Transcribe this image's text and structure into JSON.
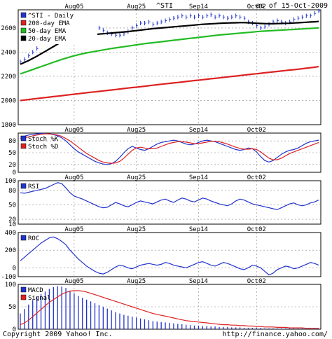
{
  "header": {
    "symbol": "^STI",
    "as_of": "as of 15-Oct-2009"
  },
  "footer": {
    "copyright": "Copyright 2009 Yahoo! Inc.",
    "url": "http://finance.yahoo.com/"
  },
  "colors": {
    "price": "#2233cc",
    "ema200": "#dd2222",
    "ema50": "#22bb22",
    "ema20": "#000000",
    "stoch_k": "#2233cc",
    "stoch_d": "#dd2222",
    "rsi": "#2233cc",
    "roc": "#2233cc",
    "macd": "#2233cc",
    "signal": "#dd2222",
    "grid": "#888888"
  },
  "x_axis": {
    "date_labels": [
      {
        "label": "Aug05",
        "x": 13
      },
      {
        "label": "Aug25",
        "x": 28
      },
      {
        "label": "Sep14",
        "x": 43
      },
      {
        "label": "Oct02",
        "x": 57
      }
    ],
    "n": 73
  },
  "chart_data": [
    {
      "type": "line",
      "title": "^STI",
      "ylim": [
        1800,
        2750
      ],
      "yticks": [
        1800,
        2000,
        2200,
        2400,
        2600
      ],
      "series": [
        {
          "name": "^STI - Daily",
          "style": "hlc",
          "values": [
            2320,
            2340,
            2370,
            2400,
            2430,
            2500,
            2560,
            2610,
            2640,
            2660,
            2670,
            2660,
            2650,
            2690,
            2680,
            2650,
            2610,
            2590,
            2610,
            2600,
            2580,
            2560,
            2550,
            2540,
            2540,
            2550,
            2570,
            2600,
            2620,
            2640,
            2640,
            2650,
            2630,
            2640,
            2650,
            2660,
            2670,
            2680,
            2690,
            2700,
            2690,
            2700,
            2690,
            2700,
            2690,
            2700,
            2710,
            2690,
            2700,
            2690,
            2680,
            2690,
            2700,
            2690,
            2680,
            2650,
            2640,
            2620,
            2600,
            2610,
            2630,
            2650,
            2660,
            2650,
            2640,
            2650,
            2670,
            2680,
            2690,
            2700,
            2700,
            2720,
            2740
          ]
        },
        {
          "name": "200-day EMA",
          "values": [
            2000,
            2004,
            2008,
            2012,
            2016,
            2020,
            2024,
            2028,
            2032,
            2036,
            2040,
            2044,
            2048,
            2052,
            2056,
            2060,
            2064,
            2068,
            2071,
            2075,
            2079,
            2083,
            2087,
            2091,
            2095,
            2099,
            2103,
            2107,
            2110,
            2114,
            2118,
            2122,
            2126,
            2130,
            2134,
            2138,
            2142,
            2145,
            2149,
            2153,
            2157,
            2161,
            2165,
            2168,
            2172,
            2176,
            2180,
            2183,
            2187,
            2191,
            2195,
            2199,
            2202,
            2206,
            2210,
            2214,
            2218,
            2221,
            2225,
            2229,
            2233,
            2237,
            2240,
            2244,
            2248,
            2252,
            2255,
            2259,
            2263,
            2267,
            2271,
            2275,
            2280
          ]
        },
        {
          "name": "50-day EMA",
          "values": [
            2220,
            2232,
            2244,
            2256,
            2268,
            2280,
            2292,
            2304,
            2316,
            2328,
            2340,
            2350,
            2360,
            2370,
            2378,
            2386,
            2394,
            2400,
            2406,
            2412,
            2418,
            2424,
            2430,
            2435,
            2440,
            2445,
            2450,
            2455,
            2460,
            2465,
            2470,
            2474,
            2478,
            2482,
            2486,
            2490,
            2494,
            2498,
            2502,
            2506,
            2510,
            2514,
            2518,
            2522,
            2526,
            2530,
            2534,
            2538,
            2542,
            2545,
            2548,
            2551,
            2554,
            2557,
            2560,
            2563,
            2566,
            2569,
            2572,
            2574,
            2576,
            2578,
            2580,
            2582,
            2584,
            2586,
            2588,
            2590,
            2592,
            2594,
            2596,
            2598,
            2600
          ]
        },
        {
          "name": "20-day EMA",
          "values": [
            2300,
            2315,
            2330,
            2348,
            2366,
            2386,
            2406,
            2426,
            2446,
            2466,
            2486,
            2500,
            2512,
            2522,
            2530,
            2536,
            2540,
            2543,
            2546,
            2549,
            2552,
            2555,
            2558,
            2561,
            2564,
            2567,
            2570,
            2574,
            2578,
            2582,
            2586,
            2590,
            2594,
            2597,
            2600,
            2603,
            2606,
            2609,
            2612,
            2615,
            2618,
            2621,
            2624,
            2627,
            2630,
            2632,
            2634,
            2636,
            2638,
            2640,
            2641,
            2642,
            2643,
            2644,
            2644,
            2643,
            2641,
            2639,
            2637,
            2636,
            2635,
            2635,
            2636,
            2637,
            2638,
            2639,
            2641,
            2643,
            2645,
            2647,
            2649,
            2651,
            2654
          ]
        }
      ]
    },
    {
      "type": "line",
      "ylim": [
        0,
        100
      ],
      "yticks": [
        0,
        20,
        50,
        80
      ],
      "series": [
        {
          "name": "Stoch %K",
          "values": [
            90,
            92,
            95,
            97,
            98,
            99,
            99,
            98,
            96,
            93,
            88,
            80,
            70,
            60,
            52,
            46,
            40,
            34,
            28,
            24,
            21,
            20,
            22,
            28,
            38,
            50,
            60,
            66,
            62,
            58,
            56,
            60,
            66,
            72,
            76,
            78,
            80,
            82,
            80,
            76,
            72,
            70,
            72,
            76,
            80,
            82,
            80,
            78,
            74,
            70,
            66,
            62,
            58,
            56,
            58,
            62,
            60,
            52,
            40,
            30,
            26,
            30,
            38,
            46,
            52,
            56,
            58,
            62,
            68,
            74,
            78,
            80,
            82
          ]
        },
        {
          "name": "Stoch %D",
          "values": [
            86,
            88,
            90,
            93,
            95,
            97,
            98,
            98,
            97,
            95,
            92,
            86,
            80,
            72,
            64,
            56,
            48,
            42,
            36,
            30,
            26,
            24,
            23,
            24,
            28,
            36,
            46,
            56,
            62,
            64,
            62,
            60,
            60,
            62,
            66,
            70,
            74,
            76,
            78,
            78,
            77,
            75,
            73,
            73,
            75,
            77,
            79,
            79,
            78,
            75,
            72,
            68,
            64,
            61,
            59,
            59,
            60,
            58,
            52,
            44,
            36,
            32,
            32,
            36,
            42,
            48,
            52,
            56,
            60,
            64,
            68,
            72,
            76
          ]
        }
      ]
    },
    {
      "type": "line",
      "ylim": [
        10,
        100
      ],
      "yticks": [
        10,
        20,
        50,
        80,
        100
      ],
      "series": [
        {
          "name": "RSI",
          "values": [
            75,
            74,
            76,
            78,
            80,
            82,
            84,
            88,
            92,
            96,
            94,
            85,
            75,
            68,
            65,
            62,
            58,
            54,
            50,
            46,
            44,
            45,
            50,
            55,
            52,
            48,
            46,
            50,
            55,
            58,
            56,
            54,
            52,
            56,
            60,
            62,
            58,
            55,
            60,
            64,
            62,
            58,
            56,
            60,
            64,
            62,
            58,
            55,
            52,
            50,
            48,
            52,
            58,
            62,
            60,
            56,
            52,
            50,
            48,
            46,
            44,
            42,
            40,
            44,
            48,
            52,
            54,
            50,
            48,
            50,
            54,
            56,
            60
          ]
        }
      ]
    },
    {
      "type": "line",
      "ylim": [
        -100,
        400
      ],
      "yticks": [
        -100,
        0,
        200,
        400
      ],
      "series": [
        {
          "name": "ROC",
          "values": [
            80,
            120,
            160,
            200,
            240,
            280,
            310,
            340,
            350,
            330,
            300,
            260,
            200,
            150,
            100,
            60,
            20,
            -10,
            -40,
            -60,
            -70,
            -50,
            -20,
            10,
            30,
            20,
            0,
            -10,
            10,
            30,
            40,
            50,
            40,
            30,
            40,
            60,
            50,
            30,
            20,
            10,
            0,
            20,
            40,
            60,
            70,
            50,
            30,
            20,
            40,
            60,
            50,
            30,
            10,
            -10,
            -20,
            0,
            30,
            20,
            0,
            -40,
            -80,
            -60,
            -20,
            0,
            20,
            10,
            -10,
            0,
            20,
            40,
            60,
            50,
            30
          ]
        }
      ]
    },
    {
      "type": "bar",
      "ylim": [
        0,
        100
      ],
      "yticks": [
        0,
        50,
        100
      ],
      "series": [
        {
          "name": "MACD",
          "values": [
            35,
            45,
            55,
            65,
            72,
            78,
            84,
            90,
            94,
            96,
            95,
            92,
            86,
            80,
            74,
            70,
            66,
            62,
            58,
            54,
            50,
            46,
            42,
            38,
            35,
            32,
            30,
            28,
            26,
            24,
            22,
            20,
            18,
            17,
            16,
            15,
            14,
            13,
            12,
            11,
            10,
            9,
            8,
            8,
            7,
            7,
            6,
            6,
            5,
            5,
            5,
            4,
            4,
            4,
            3,
            3,
            3,
            3,
            3,
            2,
            2,
            2,
            2,
            2,
            2,
            2,
            2,
            2,
            2,
            2,
            2,
            2,
            2
          ]
        },
        {
          "name": "Signal",
          "values": [
            10,
            14,
            20,
            28,
            36,
            44,
            52,
            60,
            66,
            72,
            78,
            82,
            85,
            86,
            86,
            85,
            83,
            80,
            77,
            74,
            71,
            68,
            65,
            62,
            59,
            56,
            53,
            50,
            47,
            44,
            41,
            38,
            35,
            33,
            31,
            29,
            27,
            25,
            23,
            21,
            19,
            18,
            17,
            16,
            15,
            14,
            13,
            12,
            11,
            10,
            10,
            9,
            9,
            8,
            8,
            7,
            7,
            6,
            6,
            5,
            5,
            5,
            4,
            4,
            4,
            3,
            3,
            3,
            3,
            2,
            2,
            2,
            2
          ]
        }
      ]
    }
  ]
}
